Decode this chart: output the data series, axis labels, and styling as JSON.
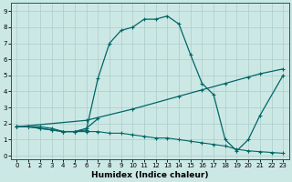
{
  "xlabel": "Humidex (Indice chaleur)",
  "xlim": [
    -0.5,
    23.5
  ],
  "ylim": [
    -0.2,
    9.5
  ],
  "xticks": [
    0,
    1,
    2,
    3,
    4,
    5,
    6,
    7,
    8,
    9,
    10,
    11,
    12,
    13,
    14,
    15,
    16,
    17,
    18,
    19,
    20,
    21,
    22,
    23
  ],
  "yticks": [
    0,
    1,
    2,
    3,
    4,
    5,
    6,
    7,
    8,
    9
  ],
  "background_color": "#cce8e5",
  "grid_color": "#aaccca",
  "line_color": "#006666",
  "series": [
    {
      "x": [
        0,
        1,
        2,
        3,
        4,
        5,
        6,
        7,
        8,
        9,
        10,
        11,
        12,
        13,
        14,
        15,
        16,
        17,
        18,
        19,
        20,
        21,
        23
      ],
      "y": [
        1.8,
        1.8,
        1.8,
        1.7,
        1.5,
        1.5,
        1.6,
        4.8,
        7.0,
        7.8,
        8.0,
        8.5,
        8.5,
        8.7,
        8.2,
        6.3,
        4.5,
        3.8,
        1.0,
        0.3,
        1.0,
        2.5,
        5.0
      ]
    },
    {
      "x": [
        0,
        6,
        10,
        14,
        16,
        18,
        20,
        21,
        23
      ],
      "y": [
        1.8,
        2.2,
        2.9,
        3.7,
        4.1,
        4.5,
        4.9,
        5.1,
        5.4
      ]
    },
    {
      "x": [
        0,
        1,
        2,
        3,
        4,
        5,
        6,
        7,
        8,
        9,
        10,
        11,
        12,
        13,
        14,
        15,
        16,
        17,
        18,
        19,
        20,
        21,
        22,
        23
      ],
      "y": [
        1.8,
        1.8,
        1.7,
        1.6,
        1.5,
        1.5,
        1.5,
        1.5,
        1.4,
        1.4,
        1.3,
        1.2,
        1.1,
        1.1,
        1.0,
        0.9,
        0.8,
        0.7,
        0.6,
        0.4,
        0.3,
        0.25,
        0.2,
        0.15
      ]
    },
    {
      "x": [
        0,
        1,
        2,
        3,
        4,
        5,
        6,
        7
      ],
      "y": [
        1.8,
        1.8,
        1.7,
        1.6,
        1.5,
        1.5,
        1.7,
        2.3
      ]
    }
  ]
}
